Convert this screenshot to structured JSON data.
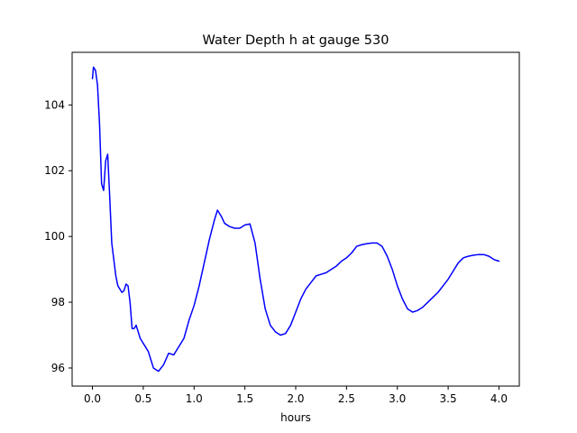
{
  "chart_data": {
    "type": "line",
    "title": "Water Depth h at gauge 530",
    "xlabel": "hours",
    "ylabel": "",
    "xlim": [
      -0.2,
      4.2
    ],
    "ylim": [
      95.45,
      105.6
    ],
    "x_ticks": [
      0.0,
      0.5,
      1.0,
      1.5,
      2.0,
      2.5,
      3.0,
      3.5,
      4.0
    ],
    "x_tick_labels": [
      "0.0",
      "0.5",
      "1.0",
      "1.5",
      "2.0",
      "2.5",
      "3.0",
      "3.5",
      "4.0"
    ],
    "y_ticks": [
      96,
      98,
      100,
      102,
      104
    ],
    "y_tick_labels": [
      "96",
      "98",
      "100",
      "102",
      "104"
    ],
    "grid": false,
    "series": [
      {
        "color": "#0000ff",
        "x": [
          0.0,
          0.01,
          0.03,
          0.05,
          0.07,
          0.09,
          0.11,
          0.13,
          0.15,
          0.17,
          0.19,
          0.21,
          0.23,
          0.25,
          0.27,
          0.29,
          0.31,
          0.33,
          0.35,
          0.37,
          0.39,
          0.41,
          0.43,
          0.45,
          0.47,
          0.49,
          0.51,
          0.55,
          0.6,
          0.65,
          0.7,
          0.75,
          0.8,
          0.85,
          0.9,
          0.95,
          1.0,
          1.05,
          1.1,
          1.15,
          1.2,
          1.23,
          1.27,
          1.3,
          1.35,
          1.4,
          1.45,
          1.5,
          1.55,
          1.6,
          1.65,
          1.7,
          1.75,
          1.8,
          1.85,
          1.9,
          1.95,
          2.0,
          2.05,
          2.1,
          2.15,
          2.2,
          2.25,
          2.3,
          2.35,
          2.4,
          2.45,
          2.5,
          2.55,
          2.6,
          2.65,
          2.7,
          2.75,
          2.8,
          2.85,
          2.9,
          2.95,
          3.0,
          3.05,
          3.1,
          3.15,
          3.2,
          3.25,
          3.3,
          3.35,
          3.4,
          3.45,
          3.5,
          3.55,
          3.6,
          3.65,
          3.7,
          3.75,
          3.8,
          3.85,
          3.9,
          3.95,
          4.0
        ],
        "y": [
          104.8,
          105.15,
          105.05,
          104.6,
          103.4,
          101.6,
          101.4,
          102.3,
          102.5,
          101.2,
          99.8,
          99.3,
          98.8,
          98.5,
          98.4,
          98.3,
          98.35,
          98.55,
          98.5,
          98.0,
          97.2,
          97.2,
          97.3,
          97.1,
          96.9,
          96.8,
          96.7,
          96.5,
          96.0,
          95.9,
          96.1,
          96.45,
          96.4,
          96.65,
          96.9,
          97.45,
          97.9,
          98.5,
          99.2,
          99.9,
          100.5,
          100.8,
          100.6,
          100.4,
          100.3,
          100.25,
          100.25,
          100.35,
          100.38,
          99.8,
          98.7,
          97.8,
          97.3,
          97.1,
          97.0,
          97.05,
          97.3,
          97.7,
          98.1,
          98.4,
          98.6,
          98.8,
          98.85,
          98.9,
          99.0,
          99.1,
          99.25,
          99.35,
          99.5,
          99.7,
          99.75,
          99.78,
          99.8,
          99.8,
          99.7,
          99.4,
          99.0,
          98.5,
          98.1,
          97.8,
          97.7,
          97.75,
          97.85,
          98.0,
          98.15,
          98.3,
          98.5,
          98.7,
          98.95,
          99.2,
          99.35,
          99.4,
          99.43,
          99.45,
          99.45,
          99.4,
          99.3,
          99.25
        ]
      }
    ]
  }
}
